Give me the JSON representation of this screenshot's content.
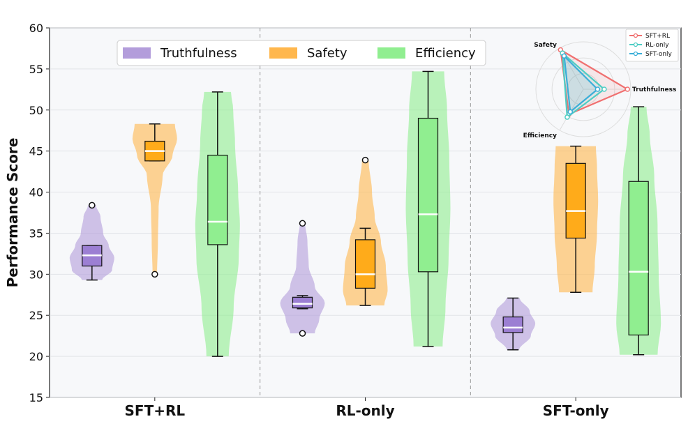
{
  "chart_data": {
    "type": "violin+box",
    "ylabel": "Performance Score",
    "ylim": [
      15,
      60
    ],
    "yticks": [
      15,
      20,
      25,
      30,
      35,
      40,
      45,
      50,
      55,
      60
    ],
    "categories": [
      "SFT+RL",
      "RL-only",
      "SFT-only"
    ],
    "legend": {
      "placement": "top-left",
      "entries": [
        "Truthfulness",
        "Safety",
        "Efficiency"
      ]
    },
    "colors": {
      "Truthfulness": "#b39ddb",
      "Safety": "#ffb74d",
      "Efficiency": "#90ee90"
    },
    "box_colors": {
      "Truthfulness": "#9c7fd3",
      "Safety": "#ffab1a",
      "Efficiency": "#90ee90"
    },
    "groups": [
      {
        "category": "SFT+RL",
        "series": [
          {
            "metric": "Truthfulness",
            "min": 29.3,
            "q1": 31.0,
            "median": 32.3,
            "q3": 33.5,
            "max": 38.4,
            "whisker_low": 29.3,
            "whisker_high": 33.5,
            "outliers": [
              38.4
            ],
            "profile": [
              [
                29.3,
                0.45
              ],
              [
                30.5,
                0.9
              ],
              [
                32.0,
                1.0
              ],
              [
                33.5,
                0.75
              ],
              [
                35.0,
                0.5
              ],
              [
                37.0,
                0.38
              ],
              [
                38.4,
                0.18
              ]
            ]
          },
          {
            "metric": "Safety",
            "min": 30.0,
            "q1": 43.8,
            "median": 45.0,
            "q3": 46.2,
            "max": 48.3,
            "whisker_low": 43.8,
            "whisker_high": 48.3,
            "outliers": [
              30.0
            ],
            "profile": [
              [
                30.0,
                0.1
              ],
              [
                34.0,
                0.14
              ],
              [
                38.0,
                0.17
              ],
              [
                42.0,
                0.35
              ],
              [
                44.5,
                0.8
              ],
              [
                46.5,
                1.0
              ],
              [
                48.3,
                0.9
              ]
            ]
          },
          {
            "metric": "Efficiency",
            "min": 20.0,
            "q1": 33.6,
            "median": 36.4,
            "q3": 44.5,
            "max": 52.2,
            "whisker_low": 20.0,
            "whisker_high": 52.2,
            "outliers": [],
            "profile": [
              [
                20.0,
                0.5
              ],
              [
                26.0,
                0.72
              ],
              [
                32.0,
                0.95
              ],
              [
                36.0,
                1.0
              ],
              [
                40.0,
                0.92
              ],
              [
                46.0,
                0.78
              ],
              [
                50.0,
                0.7
              ],
              [
                52.2,
                0.6
              ]
            ]
          }
        ]
      },
      {
        "category": "RL-only",
        "series": [
          {
            "metric": "Truthfulness",
            "min": 22.8,
            "q1": 25.9,
            "median": 26.4,
            "q3": 27.2,
            "max": 36.2,
            "whisker_low": 25.8,
            "whisker_high": 27.4,
            "outliers": [
              22.8,
              36.2
            ],
            "profile": [
              [
                22.8,
                0.55
              ],
              [
                24.5,
                0.75
              ],
              [
                26.5,
                1.0
              ],
              [
                28.5,
                0.55
              ],
              [
                31.0,
                0.28
              ],
              [
                34.0,
                0.22
              ],
              [
                36.2,
                0.12
              ]
            ]
          },
          {
            "metric": "Safety",
            "min": 26.2,
            "q1": 28.3,
            "median": 30.0,
            "q3": 34.2,
            "max": 43.9,
            "whisker_low": 26.2,
            "whisker_high": 35.6,
            "outliers": [
              43.9
            ],
            "profile": [
              [
                26.2,
                0.85
              ],
              [
                28.0,
                1.0
              ],
              [
                31.0,
                0.92
              ],
              [
                34.0,
                0.7
              ],
              [
                37.0,
                0.42
              ],
              [
                40.0,
                0.3
              ],
              [
                43.9,
                0.15
              ]
            ]
          },
          {
            "metric": "Efficiency",
            "min": 21.2,
            "q1": 30.3,
            "median": 37.3,
            "q3": 49.0,
            "max": 54.7,
            "whisker_low": 21.2,
            "whisker_high": 54.7,
            "outliers": [],
            "profile": [
              [
                21.2,
                0.65
              ],
              [
                26.0,
                0.78
              ],
              [
                32.0,
                0.92
              ],
              [
                38.0,
                1.0
              ],
              [
                44.0,
                0.95
              ],
              [
                50.0,
                0.85
              ],
              [
                54.7,
                0.72
              ]
            ]
          }
        ]
      },
      {
        "category": "SFT-only",
        "series": [
          {
            "metric": "Truthfulness",
            "min": 20.8,
            "q1": 22.9,
            "median": 23.5,
            "q3": 24.8,
            "max": 27.1,
            "whisker_low": 20.8,
            "whisker_high": 27.1,
            "outliers": [],
            "profile": [
              [
                20.8,
                0.28
              ],
              [
                22.5,
                0.8
              ],
              [
                24.0,
                1.0
              ],
              [
                25.5,
                0.75
              ],
              [
                27.1,
                0.3
              ]
            ]
          },
          {
            "metric": "Safety",
            "min": 27.8,
            "q1": 34.4,
            "median": 37.7,
            "q3": 43.5,
            "max": 45.6,
            "whisker_low": 27.8,
            "whisker_high": 45.6,
            "outliers": [],
            "profile": [
              [
                27.8,
                0.75
              ],
              [
                31.0,
                0.85
              ],
              [
                35.0,
                0.95
              ],
              [
                39.0,
                1.0
              ],
              [
                43.0,
                0.95
              ],
              [
                45.6,
                0.9
              ]
            ]
          },
          {
            "metric": "Efficiency",
            "min": 20.2,
            "q1": 22.6,
            "median": 30.3,
            "q3": 41.3,
            "max": 50.4,
            "whisker_low": 20.2,
            "whisker_high": 50.4,
            "outliers": [],
            "profile": [
              [
                20.2,
                0.85
              ],
              [
                24.0,
                1.0
              ],
              [
                30.0,
                0.9
              ],
              [
                36.0,
                0.85
              ],
              [
                42.0,
                0.7
              ],
              [
                47.0,
                0.5
              ],
              [
                50.4,
                0.35
              ]
            ]
          }
        ]
      }
    ],
    "inset_radar": {
      "type": "radar",
      "axes": [
        "Truthfulness",
        "Safety",
        "Efficiency"
      ],
      "placement": "top-right",
      "series": [
        {
          "name": "SFT+RL",
          "color": "#f07070",
          "values": [
            0.93,
            0.96,
            0.61
          ]
        },
        {
          "name": "RL-only",
          "color": "#4ecdc4",
          "values": [
            0.44,
            0.88,
            0.68
          ]
        },
        {
          "name": "SFT-only",
          "color": "#3aaed8",
          "values": [
            0.3,
            0.81,
            0.55
          ]
        }
      ]
    }
  }
}
